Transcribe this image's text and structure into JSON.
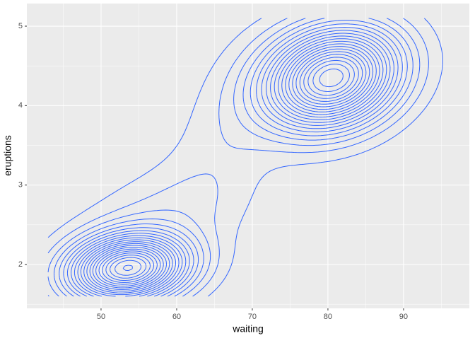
{
  "chart_data": {
    "type": "contour",
    "x_label": "waiting",
    "y_label": "eruptions",
    "xlim": [
      40.19,
      98.7
    ],
    "ylim": [
      1.448,
      5.285
    ],
    "xticks": [
      50,
      60,
      70,
      80,
      90
    ],
    "yticks": [
      2,
      3,
      4,
      5
    ],
    "grid": true,
    "color": "#3366ff"
  }
}
